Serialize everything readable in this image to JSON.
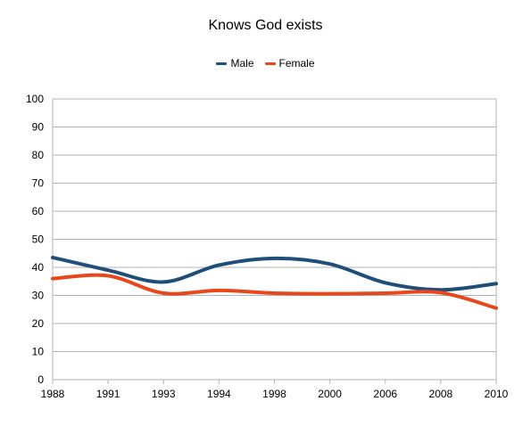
{
  "chart_data": {
    "type": "line",
    "title": "Knows God exists",
    "xlabel": "",
    "ylabel": "",
    "categories": [
      "1988",
      "1991",
      "1993",
      "1994",
      "1998",
      "2000",
      "2006",
      "2008",
      "2010"
    ],
    "ylim": [
      0,
      100
    ],
    "yticks": [
      "0",
      "10",
      "20",
      "30",
      "40",
      "50",
      "60",
      "70",
      "80",
      "90",
      "100"
    ],
    "grid": true,
    "legend_position": "top",
    "smooth": true,
    "series": [
      {
        "name": "Male",
        "color": "#1f4e79",
        "values": [
          43.5,
          39,
          34.8,
          40.8,
          43.2,
          41.2,
          34.5,
          32,
          34.2
        ]
      },
      {
        "name": "Female",
        "color": "#e8471c",
        "values": [
          36,
          37,
          30.8,
          31.8,
          30.8,
          30.6,
          30.8,
          31,
          25.5
        ]
      }
    ]
  }
}
